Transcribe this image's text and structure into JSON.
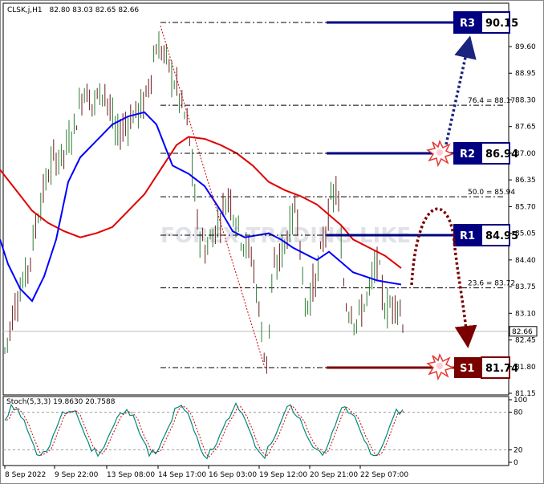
{
  "header": {
    "symbol": "CLSK,j,H1",
    "ohlc": "82.80 83.03 82.65 82.66"
  },
  "stoch_header": "Stoch(5,3,3) 19.8630 20.7588",
  "watermark": "FOREX TRADING LIKE",
  "colors": {
    "up": "#2e7d32",
    "down": "#6b1c1c",
    "ma_fast": "#0000ff",
    "ma_slow": "#e00000",
    "resistance": "#000080",
    "support": "#7a0000",
    "stoch_main": "#00897b",
    "stoch_signal": "#cc0000"
  },
  "price_axis": {
    "ticks": [
      "89.60",
      "88.95",
      "88.30",
      "87.65",
      "87.00",
      "86.35",
      "85.70",
      "85.05",
      "84.40",
      "83.75",
      "83.10",
      "82.45",
      "81.80",
      "81.15"
    ],
    "current": "82.66"
  },
  "stoch_axis": {
    "ticks": [
      "100",
      "80",
      "20",
      "0"
    ]
  },
  "time_axis": {
    "labels": [
      "8 Sep 2022",
      "9 Sep 22:00",
      "13 Sep 08:00",
      "14 Sep 17:00",
      "16 Sep 03:00",
      "19 Sep 12:00",
      "20 Sep 21:00",
      "22 Sep 07:00"
    ]
  },
  "levels": [
    {
      "id": "R3",
      "label": "R3",
      "value": "90.15"
    },
    {
      "id": "R2",
      "label": "R2",
      "value": "86.94"
    },
    {
      "id": "R1",
      "label": "R1",
      "value": "84.95"
    },
    {
      "id": "S1",
      "label": "S1",
      "value": "81.74"
    }
  ],
  "fib": [
    {
      "label": "76.4 = 88.17",
      "price": 88.17
    },
    {
      "label": "50.0 = 85.94",
      "price": 85.94
    },
    {
      "label": "23.6 = 83.72",
      "price": 83.72
    }
  ],
  "chart_data": {
    "type": "candlestick",
    "symbol": "CLSK,j,H1",
    "yticks": [
      81.15,
      81.8,
      82.45,
      83.1,
      83.75,
      84.4,
      85.05,
      85.7,
      86.35,
      87.0,
      87.65,
      88.3,
      88.95,
      89.6
    ],
    "ylim": [
      81.0,
      90.45
    ],
    "current_price": 82.66,
    "levels": {
      "R3": 90.15,
      "R2": 86.94,
      "R1": 84.95,
      "S1": 81.74
    },
    "fibonacci": {
      "76.4": 88.17,
      "50.0": 85.94,
      "23.6": 83.72
    },
    "ma_fast": [
      [
        0,
        84.9
      ],
      [
        10,
        84.3
      ],
      [
        25,
        83.7
      ],
      [
        40,
        83.4
      ],
      [
        55,
        84.0
      ],
      [
        70,
        84.9
      ],
      [
        85,
        86.3
      ],
      [
        100,
        86.9
      ],
      [
        120,
        87.3
      ],
      [
        140,
        87.7
      ],
      [
        160,
        87.9
      ],
      [
        180,
        88.0
      ],
      [
        195,
        87.7
      ],
      [
        215,
        86.7
      ],
      [
        235,
        86.5
      ],
      [
        255,
        86.2
      ],
      [
        275,
        85.6
      ],
      [
        290,
        85.1
      ],
      [
        305,
        84.95
      ],
      [
        320,
        85.0
      ],
      [
        335,
        85.05
      ],
      [
        350,
        84.9
      ],
      [
        365,
        84.7
      ],
      [
        380,
        84.55
      ],
      [
        395,
        84.4
      ],
      [
        410,
        84.6
      ],
      [
        425,
        84.35
      ],
      [
        440,
        84.1
      ],
      [
        455,
        84.0
      ],
      [
        470,
        83.9
      ],
      [
        485,
        83.85
      ],
      [
        500,
        83.8
      ]
    ],
    "ma_slow": [
      [
        0,
        86.6
      ],
      [
        20,
        86.1
      ],
      [
        40,
        85.6
      ],
      [
        60,
        85.3
      ],
      [
        80,
        85.1
      ],
      [
        100,
        84.95
      ],
      [
        120,
        85.05
      ],
      [
        140,
        85.2
      ],
      [
        160,
        85.6
      ],
      [
        180,
        86.0
      ],
      [
        200,
        86.6
      ],
      [
        220,
        87.2
      ],
      [
        235,
        87.4
      ],
      [
        255,
        87.35
      ],
      [
        275,
        87.2
      ],
      [
        295,
        87.0
      ],
      [
        315,
        86.7
      ],
      [
        335,
        86.3
      ],
      [
        355,
        86.1
      ],
      [
        375,
        85.95
      ],
      [
        395,
        85.75
      ],
      [
        410,
        85.5
      ],
      [
        425,
        85.25
      ],
      [
        440,
        84.9
      ],
      [
        460,
        84.7
      ],
      [
        480,
        84.5
      ],
      [
        500,
        84.2
      ]
    ],
    "stochastic": {
      "params": "5,3,3",
      "main": 19.863,
      "signal": 20.7588,
      "levels": [
        20,
        80
      ]
    }
  }
}
